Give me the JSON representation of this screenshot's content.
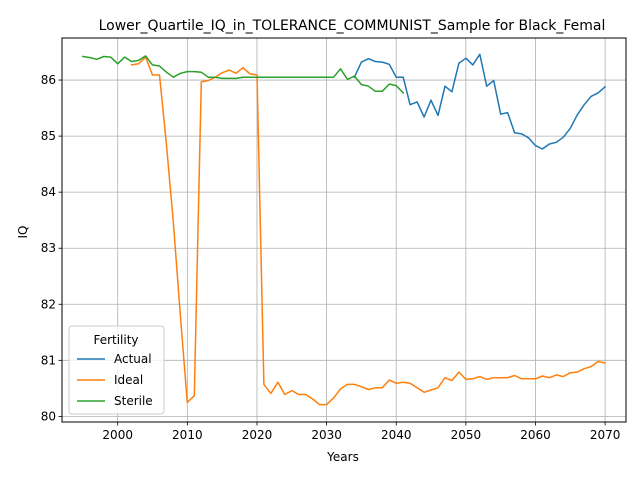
{
  "chart_data": {
    "type": "line",
    "title": "Lower_Quartile_IQ_in_TOLERANCE_COMMUNIST_Sample for Black_Femal",
    "xlabel": "Years",
    "ylabel": "IQ",
    "xlim": [
      1992,
      2073
    ],
    "ylim": [
      79.9,
      86.75
    ],
    "xticks": [
      2000,
      2010,
      2020,
      2030,
      2040,
      2050,
      2060,
      2070
    ],
    "yticks": [
      80,
      81,
      82,
      83,
      84,
      85,
      86
    ],
    "grid": true,
    "legend": {
      "title": "Fertility",
      "placement": "lower-left"
    },
    "series": [
      {
        "name": "Actual",
        "color": "#1f77b4",
        "x": [
          2034,
          2035,
          2036,
          2037,
          2038,
          2039,
          2040,
          2041,
          2042,
          2043,
          2044,
          2045,
          2046,
          2047,
          2048,
          2049,
          2050,
          2051,
          2052,
          2053,
          2054,
          2055,
          2056,
          2057,
          2058,
          2059,
          2060,
          2061,
          2062,
          2063,
          2064,
          2065,
          2066,
          2067,
          2068,
          2069,
          2070
        ],
        "y": [
          86.05,
          86.32,
          86.38,
          86.33,
          86.32,
          86.28,
          86.05,
          86.05,
          85.56,
          85.61,
          85.34,
          85.64,
          85.37,
          85.89,
          85.79,
          86.3,
          86.39,
          86.27,
          86.46,
          85.89,
          85.99,
          85.39,
          85.42,
          85.06,
          85.04,
          84.97,
          84.83,
          84.77,
          84.86,
          84.89,
          84.98,
          85.14,
          85.38,
          85.56,
          85.71,
          85.77,
          85.88
        ]
      },
      {
        "name": "Ideal",
        "color": "#ff7f0e",
        "x": [
          2002,
          2003,
          2004,
          2005,
          2006,
          2007,
          2008,
          2009,
          2010,
          2011,
          2012,
          2013,
          2014,
          2015,
          2016,
          2017,
          2018,
          2019,
          2020,
          2021,
          2022,
          2023,
          2024,
          2025,
          2026,
          2027,
          2028,
          2029,
          2030,
          2031,
          2032,
          2033,
          2034,
          2035,
          2036,
          2037,
          2038,
          2039,
          2040,
          2041,
          2042,
          2043,
          2044,
          2045,
          2046,
          2047,
          2048,
          2049,
          2050,
          2051,
          2052,
          2053,
          2054,
          2055,
          2056,
          2057,
          2058,
          2059,
          2060,
          2061,
          2062,
          2063,
          2064,
          2065,
          2066,
          2067,
          2068,
          2069,
          2070
        ],
        "y": [
          86.27,
          86.29,
          86.41,
          86.09,
          86.09,
          84.86,
          83.45,
          81.79,
          80.25,
          80.37,
          85.97,
          85.99,
          86.05,
          86.13,
          86.18,
          86.12,
          86.22,
          86.11,
          86.09,
          80.57,
          80.41,
          80.61,
          80.39,
          80.46,
          80.39,
          80.39,
          80.31,
          80.21,
          80.21,
          80.33,
          80.49,
          80.57,
          80.57,
          80.53,
          80.48,
          80.51,
          80.51,
          80.65,
          80.59,
          80.61,
          80.59,
          80.51,
          80.43,
          80.47,
          80.51,
          80.69,
          80.64,
          80.79,
          80.66,
          80.67,
          80.71,
          80.66,
          80.69,
          80.69,
          80.69,
          80.73,
          80.67,
          80.67,
          80.67,
          80.72,
          80.69,
          80.74,
          80.71,
          80.78,
          80.79,
          80.85,
          80.89,
          80.98,
          80.95
        ]
      },
      {
        "name": "Sterile",
        "color": "#2ca02c",
        "x": [
          1995,
          1996,
          1997,
          1998,
          1999,
          2000,
          2001,
          2002,
          2003,
          2004,
          2005,
          2006,
          2007,
          2008,
          2009,
          2010,
          2011,
          2012,
          2013,
          2014,
          2015,
          2016,
          2017,
          2018,
          2019,
          2020,
          2021,
          2022,
          2023,
          2024,
          2025,
          2026,
          2027,
          2028,
          2029,
          2030,
          2031,
          2032,
          2033,
          2034,
          2035,
          2036,
          2037,
          2038,
          2039,
          2040,
          2041
        ],
        "y": [
          86.42,
          86.4,
          86.37,
          86.42,
          86.41,
          86.29,
          86.41,
          86.33,
          86.35,
          86.43,
          86.27,
          86.25,
          86.14,
          86.05,
          86.12,
          86.15,
          86.15,
          86.14,
          86.05,
          86.05,
          86.03,
          86.03,
          86.03,
          86.05,
          86.05,
          86.05,
          86.05,
          86.05,
          86.05,
          86.05,
          86.05,
          86.05,
          86.05,
          86.05,
          86.05,
          86.05,
          86.05,
          86.2,
          86.01,
          86.07,
          85.92,
          85.89,
          85.8,
          85.8,
          85.93,
          85.9,
          85.77
        ]
      }
    ]
  }
}
